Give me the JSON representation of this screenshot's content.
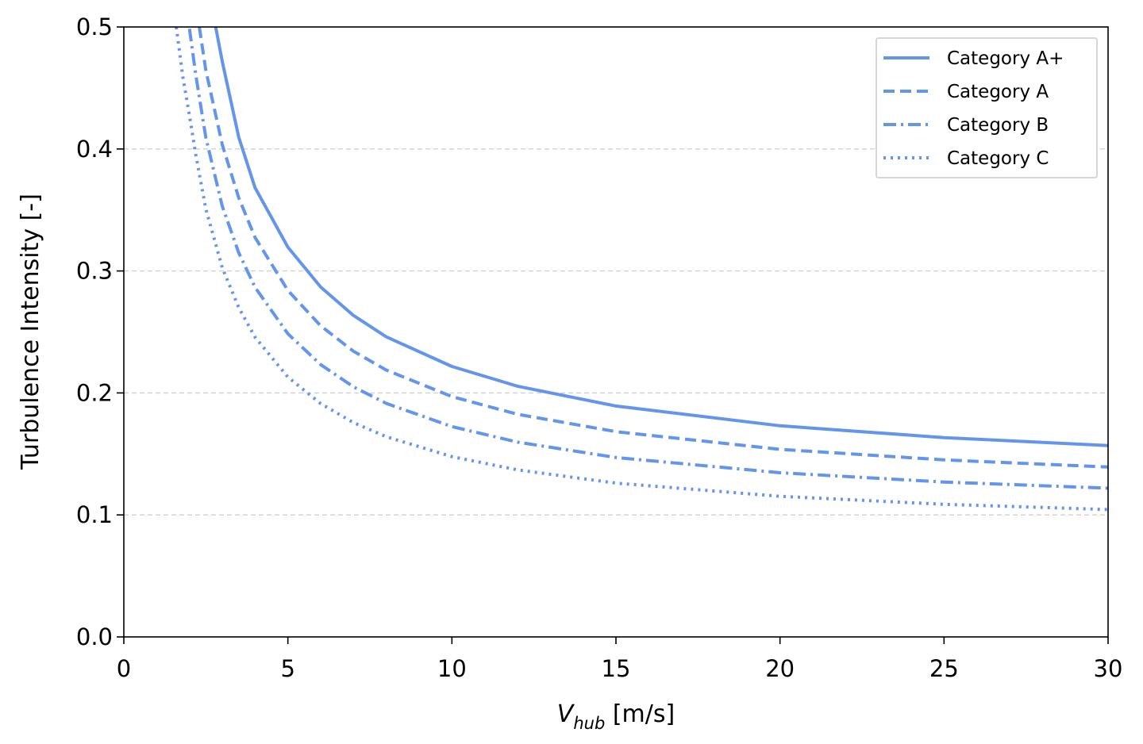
{
  "chart_data": {
    "type": "line",
    "title": "",
    "xlabel": {
      "main": "V",
      "sub": "hub",
      "unit": " [m/s]"
    },
    "ylabel": "Turbulence Intensity [-]",
    "xlim": [
      0,
      30
    ],
    "ylim": [
      0,
      0.5
    ],
    "x_ticks": [
      0,
      5,
      10,
      15,
      20,
      25,
      30
    ],
    "y_ticks": [
      0.0,
      0.1,
      0.2,
      0.3,
      0.4,
      0.5
    ],
    "x_tick_labels": [
      "0",
      "5",
      "10",
      "15",
      "20",
      "25",
      "30"
    ],
    "y_tick_labels": [
      "0.0",
      "0.1",
      "0.2",
      "0.3",
      "0.4",
      "0.5"
    ],
    "grid": {
      "axis": "y",
      "style": "dashed",
      "color": "#d0d0d0"
    },
    "legend_position": "top-right",
    "line_color": "#6495ED",
    "series": [
      {
        "name": "Category A+",
        "dash": "solid",
        "x": [
          2.8,
          3,
          3.5,
          4,
          5,
          6,
          7,
          8,
          10,
          12,
          15,
          20,
          25,
          30
        ],
        "y": [
          0.5,
          0.4718,
          0.4098,
          0.3683,
          0.3195,
          0.2868,
          0.2635,
          0.246,
          0.2217,
          0.2055,
          0.1893,
          0.1731,
          0.1634,
          0.1569
        ]
      },
      {
        "name": "Category A",
        "dash": "dashed",
        "x": [
          2.3,
          2.5,
          3,
          3.5,
          4,
          5,
          6,
          7,
          8,
          10,
          12,
          15,
          20,
          25,
          30
        ],
        "y": [
          0.5,
          0.4645,
          0.4036,
          0.3601,
          0.3275,
          0.284,
          0.255,
          0.2342,
          0.2187,
          0.197,
          0.1825,
          0.1683,
          0.1538,
          0.1451,
          0.1393
        ]
      },
      {
        "name": "Category B",
        "dash": "dashdot",
        "x": [
          2.0,
          2.2,
          2.5,
          3,
          3.5,
          4,
          5,
          6,
          7,
          8,
          10,
          12,
          15,
          20,
          25,
          30
        ],
        "y": [
          0.4985,
          0.4597,
          0.4094,
          0.3531,
          0.3151,
          0.2866,
          0.2485,
          0.2232,
          0.205,
          0.1914,
          0.1724,
          0.1597,
          0.1471,
          0.1346,
          0.127,
          0.1219
        ]
      },
      {
        "name": "Category C",
        "dash": "dotted",
        "x": [
          1.6,
          1.8,
          2,
          2.2,
          2.5,
          3,
          3.5,
          4,
          5,
          6,
          7,
          8,
          10,
          12,
          15,
          20,
          25,
          30
        ],
        "y": [
          0.5,
          0.4588,
          0.4273,
          0.3943,
          0.3509,
          0.3027,
          0.2701,
          0.2457,
          0.213,
          0.1913,
          0.1757,
          0.1641,
          0.1478,
          0.1369,
          0.1261,
          0.1153,
          0.1087,
          0.1044
        ]
      }
    ]
  }
}
